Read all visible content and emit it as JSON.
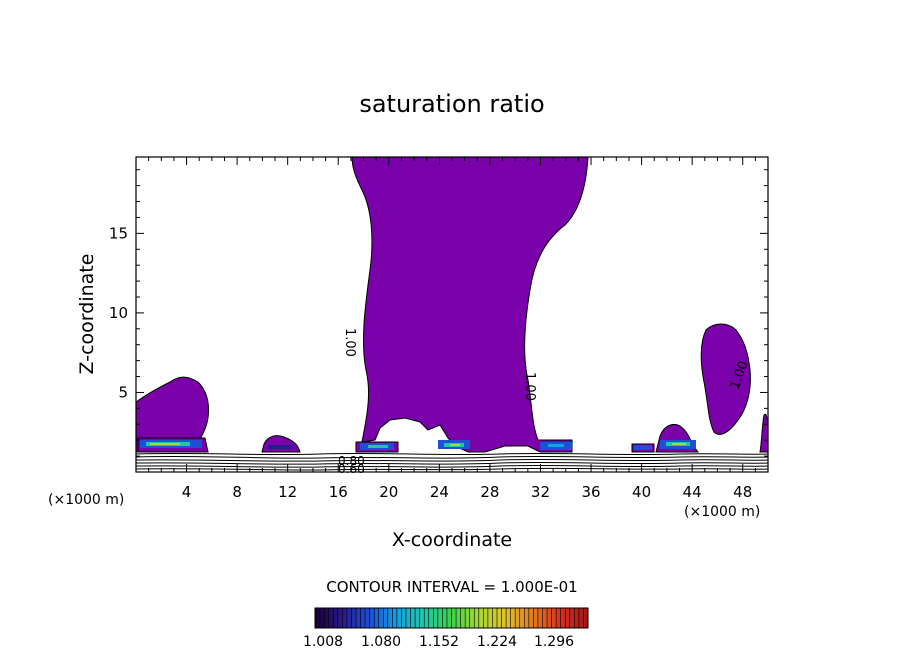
{
  "chart_data": {
    "type": "contour",
    "title": "saturation ratio",
    "xlabel": "X-coordinate",
    "ylabel": "Z-coordinate",
    "x_unit_left": "(×1000 m)",
    "x_unit_right": "(×1000 m)",
    "xlim": [
      0,
      50
    ],
    "ylim": [
      0,
      19.8
    ],
    "x_ticks": [
      4,
      8,
      12,
      16,
      20,
      24,
      28,
      32,
      36,
      40,
      44,
      48
    ],
    "y_ticks": [
      5,
      10,
      15
    ],
    "contour_interval_text": "CONTOUR INTERVAL = 1.000E-01",
    "contour_labels": [
      "1.00",
      "1.00",
      "1.00",
      "0.80",
      "0.60"
    ],
    "colorbar": {
      "tick_labels": [
        "1.008",
        "1.080",
        "1.152",
        "1.224",
        "1.296"
      ],
      "colors": [
        "#1a0033",
        "#2a1a8c",
        "#1e4fd6",
        "#1a9fe0",
        "#22c7a8",
        "#3ed24a",
        "#a8d838",
        "#e0c030",
        "#e07a20",
        "#d83020",
        "#a01818"
      ]
    },
    "saturated_fill_color": "#7a00aa"
  }
}
